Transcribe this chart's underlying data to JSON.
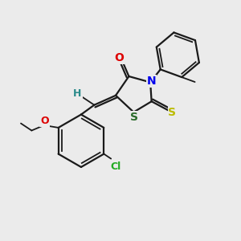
{
  "background_color": "#ebebeb",
  "bond_color": "#1a1a1a",
  "atom_colors": {
    "O": "#dd0000",
    "N": "#0000ee",
    "S_thione": "#bbbb00",
    "S_ring": "#2a6a2a",
    "Cl": "#22aa22",
    "H": "#2a8a8a",
    "C": "#1a1a1a"
  },
  "figsize": [
    3.0,
    3.0
  ],
  "dpi": 100
}
